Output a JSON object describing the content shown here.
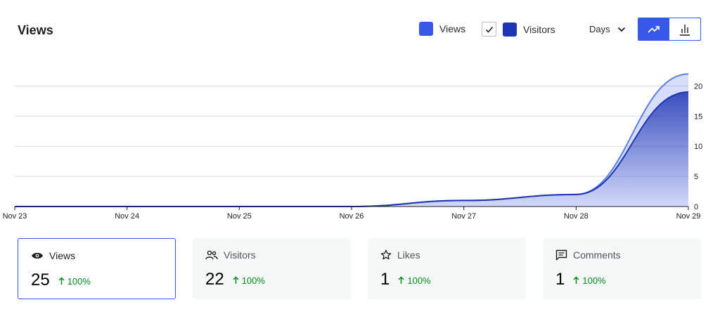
{
  "header": {
    "title": "Views",
    "legend": [
      {
        "label": "Views",
        "color": "#3858e9"
      },
      {
        "label": "Visitors",
        "color": "#1d35b4",
        "checked": true
      }
    ],
    "period": "Days",
    "chart_toggle": {
      "active": "line-chart",
      "options": [
        "line-chart",
        "bar-chart"
      ]
    }
  },
  "chart_data": {
    "type": "area",
    "categories": [
      "Nov 23",
      "Nov 24",
      "Nov 25",
      "Nov 26",
      "Nov 27",
      "Nov 28",
      "Nov 29"
    ],
    "series": [
      {
        "name": "Views",
        "values": [
          0,
          0,
          0,
          0,
          1,
          2,
          22
        ],
        "color": "#3858e9"
      },
      {
        "name": "Visitors",
        "values": [
          0,
          0,
          0,
          0,
          1,
          2,
          19
        ],
        "color": "#1d35b4"
      }
    ],
    "ylim": [
      0,
      20
    ],
    "y_ticks": [
      "0",
      "5",
      "10",
      "15",
      "20"
    ],
    "grid": true
  },
  "stats": [
    {
      "label": "Views",
      "value": "25",
      "change": "100%",
      "icon": "eye-icon",
      "active": true
    },
    {
      "label": "Visitors",
      "value": "22",
      "change": "100%",
      "icon": "people-icon",
      "active": false
    },
    {
      "label": "Likes",
      "value": "1",
      "change": "100%",
      "icon": "star-icon",
      "active": false
    },
    {
      "label": "Comments",
      "value": "1",
      "change": "100%",
      "icon": "comment-icon",
      "active": false
    }
  ]
}
